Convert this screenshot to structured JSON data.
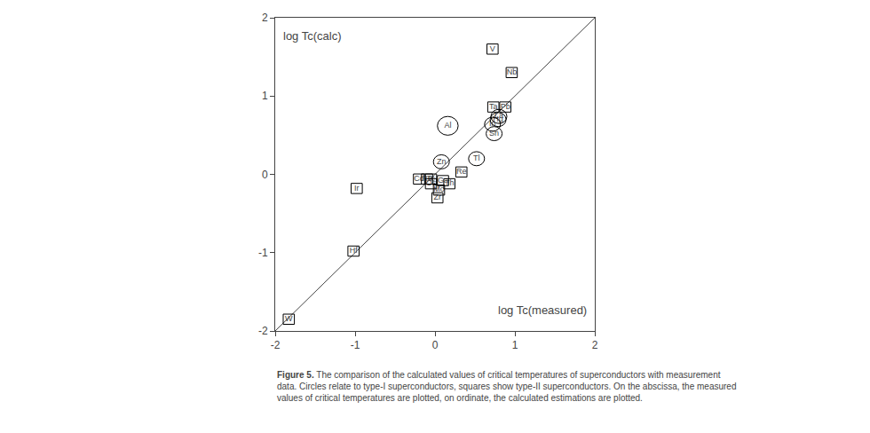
{
  "chart_data": {
    "type": "scatter",
    "xlabel": "log Tc(measured)",
    "ylabel": "log Tc(calc)",
    "caption": {
      "bold": "Figure 5.",
      "text": " The comparison of the calculated values of critical temperatures of superconductors with measurement\ndata. Circles relate to type-I superconductors, squares show type-II superconductors. On the abscissa, the measured\nvalues of critical temperatures are plotted, on ordinate, the calculated estimations are plotted."
    },
    "xlim": [
      -2,
      2
    ],
    "ylim": [
      -2,
      2
    ],
    "xticks": [
      -2,
      -1,
      0,
      1,
      2
    ],
    "yticks": [
      -2,
      -1,
      0,
      1,
      2
    ],
    "grid": false,
    "lines": [
      {
        "x": [
          -2,
          2
        ],
        "y": [
          -2,
          2
        ],
        "color": "#444444"
      }
    ],
    "series": [
      {
        "marker": "square",
        "labels": [
          "V",
          "Nb",
          "Ta",
          "Pb",
          "Re",
          "Ga",
          "Th",
          "Mo",
          "Zr",
          "Ir",
          "Hf",
          "W",
          "Tc",
          "Ru",
          "Os",
          "Cd"
        ],
        "x": [
          0.72,
          0.96,
          0.73,
          0.88,
          0.33,
          0.1,
          0.18,
          0.05,
          0.03,
          -0.98,
          -1.02,
          -1.83,
          -0.05,
          -0.1,
          -0.05,
          -0.2
        ],
        "y": [
          1.6,
          1.3,
          0.86,
          0.86,
          0.03,
          -0.08,
          -0.12,
          -0.2,
          -0.3,
          -0.18,
          -0.98,
          -1.85,
          -0.06,
          -0.06,
          -0.12,
          -0.06
        ],
        "width": 0.14,
        "height": 0.13
      },
      {
        "marker": "circle",
        "labels": [
          "Al",
          "Zn",
          "Tl",
          "In",
          "Sn",
          "Hg",
          "La"
        ],
        "x": [
          0.16,
          0.08,
          0.52,
          0.72,
          0.74,
          0.79,
          0.8
        ],
        "y": [
          0.62,
          0.16,
          0.2,
          0.64,
          0.52,
          0.7,
          0.74
        ],
        "rx": [
          0.13,
          0.1,
          0.1,
          0.1,
          0.1,
          0.1,
          0.1
        ],
        "ry": [
          0.12,
          0.09,
          0.09,
          0.09,
          0.09,
          0.09,
          0.09
        ]
      }
    ]
  }
}
